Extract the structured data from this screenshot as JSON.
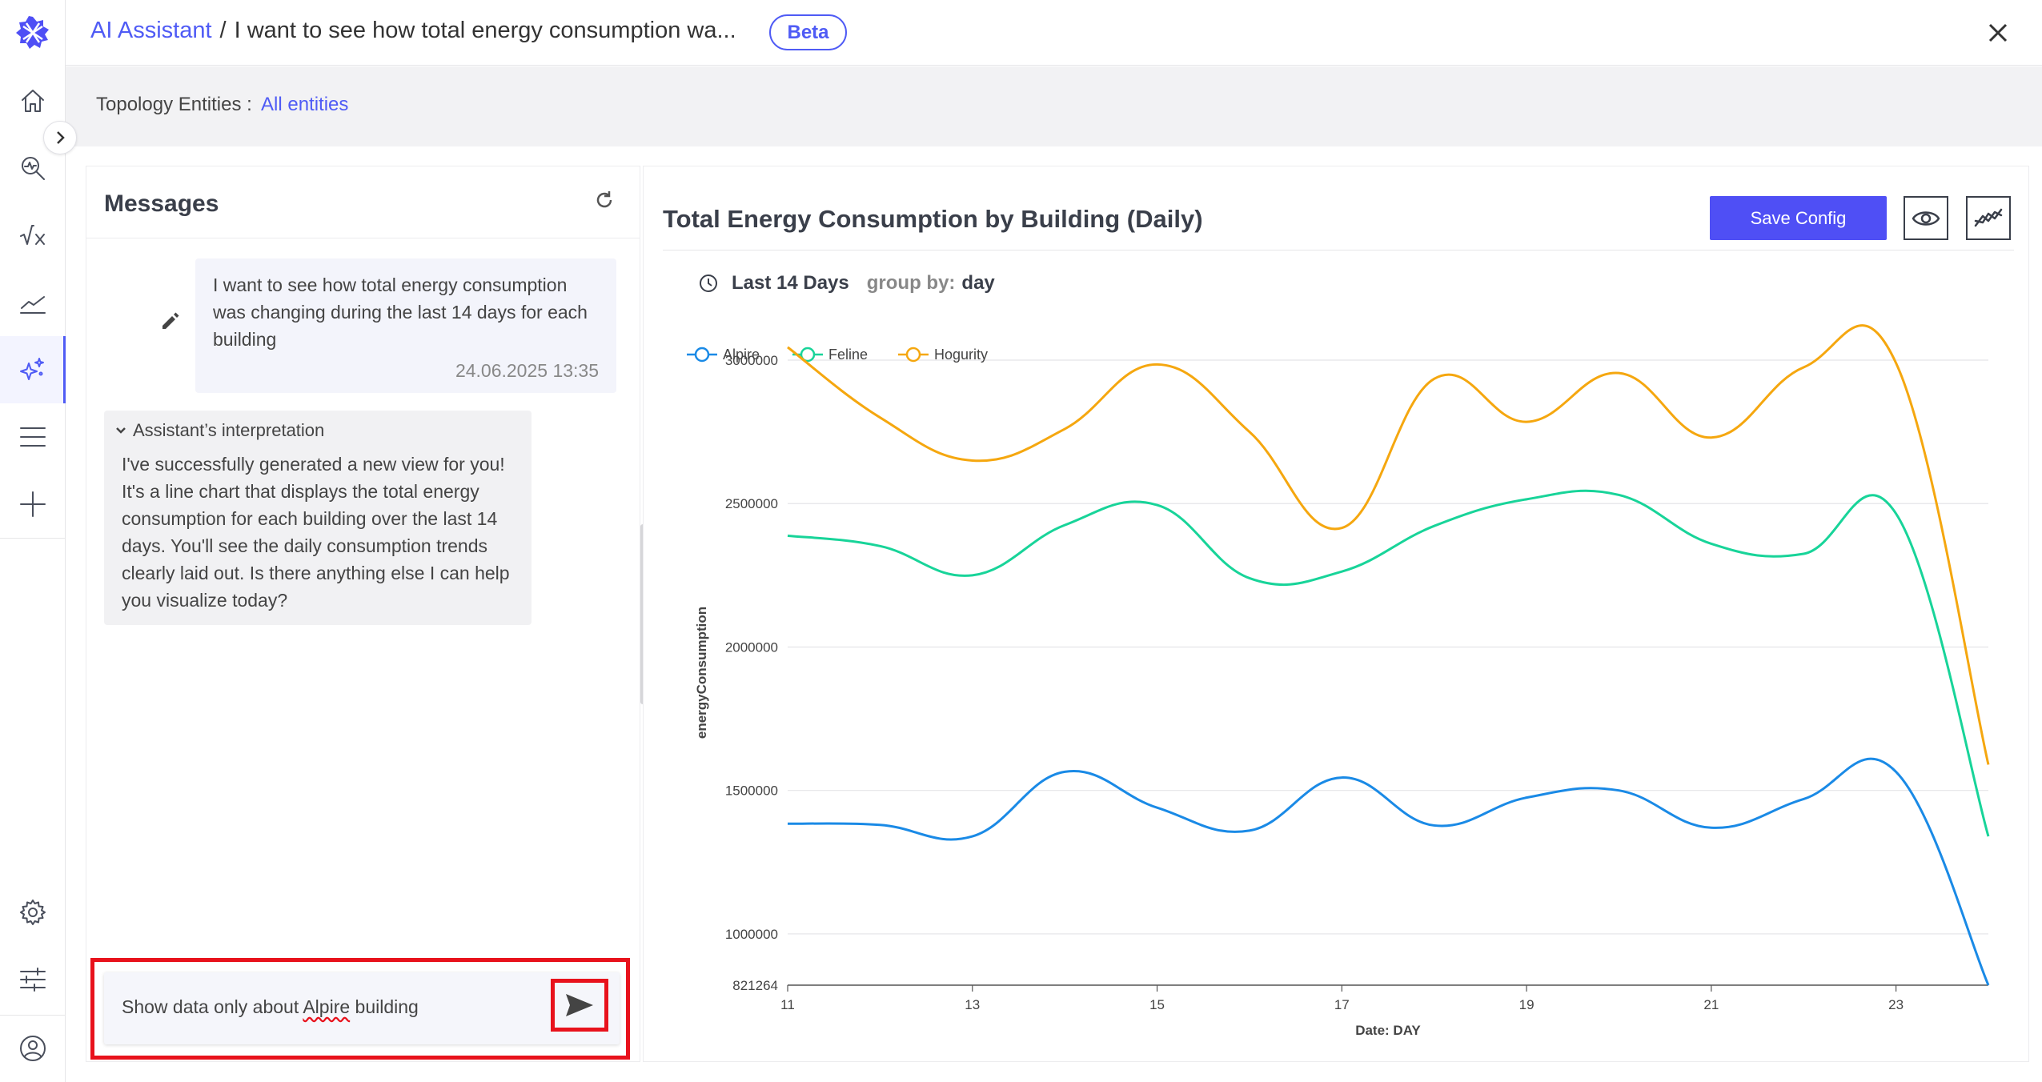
{
  "header": {
    "app_link": "AI Assistant",
    "separator": "/",
    "query_title": "I want to see how total energy consumption wa...",
    "badge": "Beta"
  },
  "filter": {
    "label": "Topology Entities :",
    "value": "All entities"
  },
  "nav": {
    "items": [
      "home-icon",
      "search-analytics-icon",
      "formula-icon",
      "trend-icon",
      "ai-assistant-icon",
      "menu-icon",
      "plus-icon"
    ],
    "bottom": [
      "gear-icon",
      "sliders-icon",
      "user-icon"
    ]
  },
  "messages": {
    "title": "Messages",
    "user_message": "I want to see how total energy consumption was changing during the last 14 days for each building",
    "user_timestamp": "24.06.2025 13:35",
    "interpretation_label": "Assistant’s interpretation",
    "assistant_message": "I've successfully generated a new view for you! It's a line chart that displays the total energy consumption for each building over the last 14 days. You'll see the daily consumption trends clearly laid out. Is there anything else I can help you visualize today?",
    "input_prefix": "Show data only about ",
    "input_underlined": "Alpire",
    "input_suffix": " building"
  },
  "chart_panel": {
    "title": "Total Energy Consumption by Building (Daily)",
    "save_label": "Save Config",
    "range_label": "Last 14 Days",
    "group_by_label": "group by:",
    "group_by_value": "day"
  },
  "colors": {
    "accent": "#4f5bf5",
    "Alpire": "#1a8ae6",
    "Feline": "#18d499",
    "Hogurity": "#f5a70f",
    "highlight": "#e8121c"
  },
  "chart_data": {
    "type": "line",
    "xlabel": "Date: DAY",
    "ylabel": "energyConsumption",
    "x": [
      11,
      12,
      13,
      14,
      15,
      16,
      17,
      18,
      19,
      20,
      21,
      22,
      23,
      24
    ],
    "xticks": [
      11,
      13,
      15,
      17,
      19,
      21,
      23
    ],
    "yticks": [
      821264,
      1000000,
      1500000,
      2000000,
      2500000,
      3000000
    ],
    "ylim": [
      821264,
      3000000
    ],
    "series": [
      {
        "name": "Alpire",
        "values": [
          1384000,
          1380000,
          1340000,
          1565000,
          1440000,
          1360000,
          1545000,
          1378000,
          1475000,
          1500000,
          1370000,
          1470000,
          1565000,
          821264
        ]
      },
      {
        "name": "Feline",
        "values": [
          2388000,
          2352000,
          2250000,
          2425000,
          2495000,
          2240000,
          2263000,
          2422000,
          2515000,
          2530000,
          2360000,
          2325000,
          2465000,
          1340000
        ]
      },
      {
        "name": "Hogurity",
        "values": [
          3045000,
          2800000,
          2650000,
          2760000,
          2985000,
          2750000,
          2415000,
          2935000,
          2785000,
          2955000,
          2730000,
          2975000,
          2990000,
          1590000
        ]
      }
    ],
    "legend": "top-left"
  }
}
